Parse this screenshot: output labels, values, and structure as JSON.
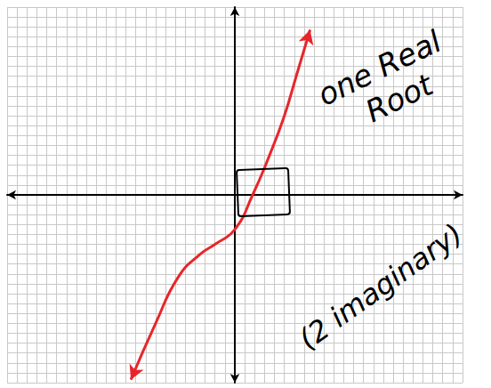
{
  "chart_data": {
    "type": "line",
    "x": [
      -10.5,
      -8,
      -5.7,
      -3.5,
      -2,
      0,
      1.8,
      3.5,
      5,
      6.2,
      7.6
    ],
    "values": [
      -18.7,
      -13,
      -8.3,
      -6,
      -5,
      -3.5,
      0,
      4,
      8,
      12,
      16.7
    ],
    "color": "#e8262a",
    "marker": "arrow",
    "line_style": "solid",
    "xlim": [
      -23,
      23
    ],
    "ylim": [
      -19,
      19
    ],
    "xticks": [
      -23,
      -22,
      -21,
      -20,
      -19,
      -18,
      -17,
      -16,
      -15,
      -14,
      -13,
      -12,
      -11,
      -10,
      -9,
      -8,
      -7,
      -6,
      -5,
      -4,
      -3,
      -2,
      -1,
      0,
      1,
      2,
      3,
      4,
      5,
      6,
      7,
      8,
      9,
      10,
      11,
      12,
      13,
      14,
      15,
      16,
      17,
      18,
      19,
      20,
      21,
      22,
      23
    ],
    "yticks": [
      -19,
      -18,
      -17,
      -16,
      -15,
      -14,
      -13,
      -12,
      -11,
      -10,
      -9,
      -8,
      -7,
      -6,
      -5,
      -4,
      -3,
      -2,
      -1,
      0,
      1,
      2,
      3,
      4,
      5,
      6,
      7,
      8,
      9,
      10,
      11,
      12,
      13,
      14,
      15,
      16,
      17,
      18,
      19
    ],
    "grid": true,
    "tick_labels": false,
    "annotations": [
      "one Real Root",
      "(2 imaginary)"
    ]
  }
}
